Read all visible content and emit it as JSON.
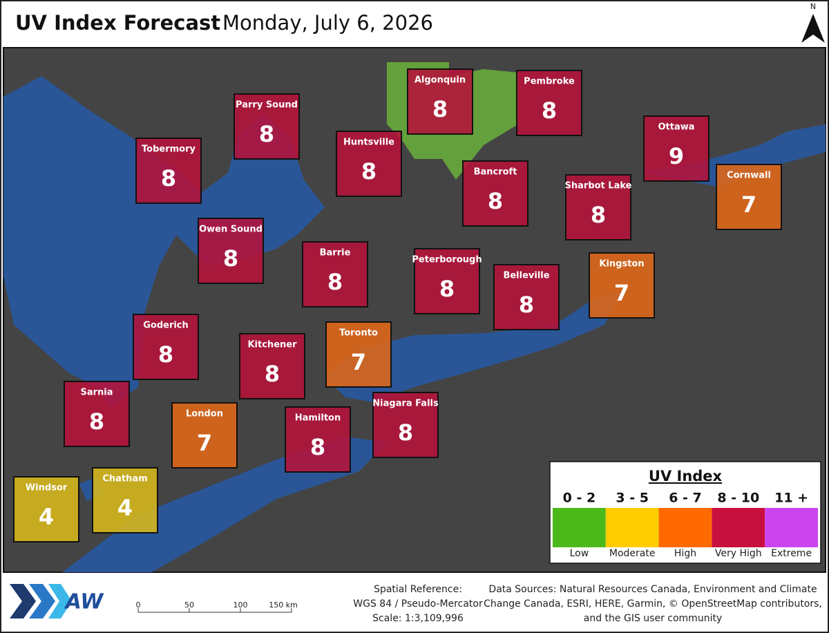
{
  "header": {
    "title": "UV Index Forecast",
    "date": "Monday, July 6, 2026",
    "north": "N"
  },
  "cities": [
    {
      "name": "Algonquin",
      "uv": 8,
      "color": "#b5123a"
    },
    {
      "name": "Pembroke",
      "uv": 8,
      "color": "#b5123a"
    },
    {
      "name": "Parry Sound",
      "uv": 8,
      "color": "#b5123a"
    },
    {
      "name": "Ottawa",
      "uv": 9,
      "color": "#b5123a"
    },
    {
      "name": "Tobermory",
      "uv": 8,
      "color": "#b5123a"
    },
    {
      "name": "Huntsville",
      "uv": 8,
      "color": "#b5123a"
    },
    {
      "name": "Bancroft",
      "uv": 8,
      "color": "#b5123a"
    },
    {
      "name": "Cornwall",
      "uv": 7,
      "color": "#e06818"
    },
    {
      "name": "Sharbot Lake",
      "uv": 8,
      "color": "#b5123a"
    },
    {
      "name": "Owen Sound",
      "uv": 8,
      "color": "#b5123a"
    },
    {
      "name": "Barrie",
      "uv": 8,
      "color": "#b5123a"
    },
    {
      "name": "Peterborough",
      "uv": 8,
      "color": "#b5123a"
    },
    {
      "name": "Kingston",
      "uv": 7,
      "color": "#e06818"
    },
    {
      "name": "Belleville",
      "uv": 8,
      "color": "#b5123a"
    },
    {
      "name": "Goderich",
      "uv": 8,
      "color": "#b5123a"
    },
    {
      "name": "Toronto",
      "uv": 7,
      "color": "#e06818"
    },
    {
      "name": "Kitchener",
      "uv": 8,
      "color": "#b5123a"
    },
    {
      "name": "Sarnia",
      "uv": 8,
      "color": "#b5123a"
    },
    {
      "name": "London",
      "uv": 7,
      "color": "#e06818"
    },
    {
      "name": "Niagara Falls",
      "uv": 8,
      "color": "#b5123a"
    },
    {
      "name": "Hamilton",
      "uv": 8,
      "color": "#b5123a"
    },
    {
      "name": "Windsor",
      "uv": 4,
      "color": "#d8b81a"
    },
    {
      "name": "Chatham",
      "uv": 4,
      "color": "#d8b81a"
    }
  ],
  "legend": {
    "title": "UV Index",
    "categories": [
      {
        "range": "0 - 2",
        "label": "Low",
        "color": "#4db81a"
      },
      {
        "range": "3 - 5",
        "label": "Moderate",
        "color": "#ffcc00"
      },
      {
        "range": "6 - 7",
        "label": "High",
        "color": "#ff6a00"
      },
      {
        "range": "8 - 10",
        "label": "Very High",
        "color": "#c8103e"
      },
      {
        "range": "11 +",
        "label": "Extreme",
        "color": "#cc44ee"
      }
    ]
  },
  "footer": {
    "logo": "AW",
    "scale_ticks": [
      0,
      50,
      100,
      {
        "value": 150,
        "label": "150 km"
      }
    ],
    "spatial_reference": [
      "Spatial Reference:",
      "WGS 84 / Pseudo-Mercator",
      "Scale: 1:3,109,996"
    ],
    "data_sources": [
      "Data Sources: Natural Resources Canada, Environment and Climate",
      "Change Canada, ESRI, HERE, Garmin, © OpenStreetMap contributors,",
      "and the GIS user community"
    ]
  }
}
